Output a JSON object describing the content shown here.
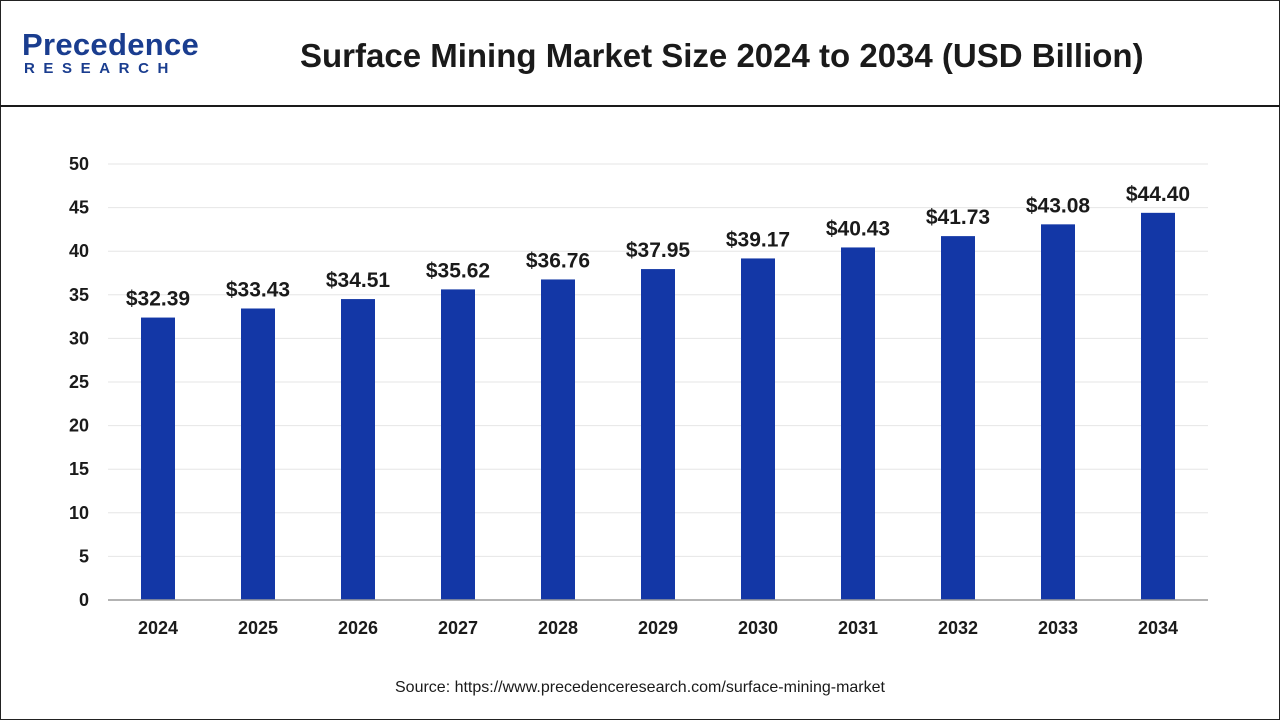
{
  "logo": {
    "main": "Precedence",
    "sub": "RESEARCH"
  },
  "colors": {
    "bar": "#1337a6",
    "brand": "#1a3d8f",
    "grid": "#e6e6e6",
    "axis": "#9a9a9a"
  },
  "source": "Source: https://www.precedenceresearch.com/surface-mining-market",
  "chart_data": {
    "type": "bar",
    "title": "Surface Mining Market Size 2024 to 2034 (USD Billion)",
    "xlabel": "",
    "ylabel": "",
    "categories": [
      "2024",
      "2025",
      "2026",
      "2027",
      "2028",
      "2029",
      "2030",
      "2031",
      "2032",
      "2033",
      "2034"
    ],
    "values": [
      32.39,
      33.43,
      34.51,
      35.62,
      36.76,
      37.95,
      39.17,
      40.43,
      41.73,
      43.08,
      44.4
    ],
    "data_labels": [
      "$32.39",
      "$33.43",
      "$34.51",
      "$35.62",
      "$36.76",
      "$37.95",
      "$39.17",
      "$40.43",
      "$41.73",
      "$43.08",
      "$44.40"
    ],
    "ylim": [
      0,
      50
    ],
    "yticks": [
      0,
      5,
      10,
      15,
      20,
      25,
      30,
      35,
      40,
      45,
      50
    ],
    "grid": true,
    "legend": "none"
  }
}
